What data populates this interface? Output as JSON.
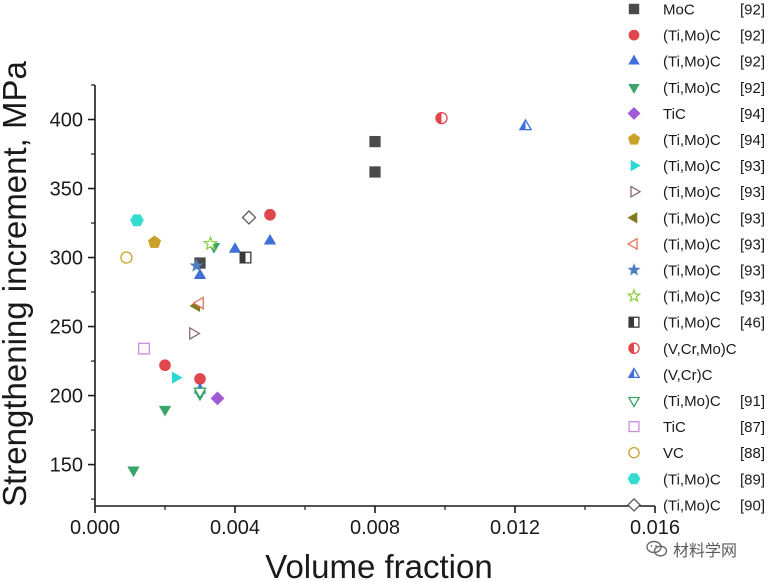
{
  "chart_data": {
    "type": "scatter",
    "title": "",
    "xlabel": "Volume fraction",
    "ylabel": "Strengthening increment, MPa",
    "xlim": [
      0.0,
      0.016
    ],
    "ylim": [
      120,
      425
    ],
    "xticks": [
      "0.000",
      "0.004",
      "0.008",
      "0.012",
      "0.016"
    ],
    "yticks": [
      "150",
      "200",
      "250",
      "300",
      "350",
      "400"
    ],
    "xtick_values": [
      0.0,
      0.004,
      0.008,
      0.012,
      0.016
    ],
    "ytick_values": [
      150,
      200,
      250,
      300,
      350,
      400
    ],
    "grid": false,
    "legend_position": "right",
    "series": [
      {
        "name": "MoC",
        "ref": "[92]",
        "marker": "square",
        "fill": "filled",
        "color": "#4a4a4a",
        "points": [
          [
            0.003,
            296
          ],
          [
            0.008,
            384
          ],
          [
            0.008,
            362
          ]
        ]
      },
      {
        "name": "(Ti,Mo)C",
        "ref": "[92]",
        "marker": "circle",
        "fill": "filled",
        "color": "#e0474c",
        "points": [
          [
            0.002,
            222
          ],
          [
            0.003,
            212
          ],
          [
            0.005,
            331
          ]
        ]
      },
      {
        "name": "(Ti,Mo)C",
        "ref": "[92]",
        "marker": "triangle-up",
        "fill": "filled",
        "color": "#3f6fd8",
        "points": [
          [
            0.003,
            287
          ],
          [
            0.004,
            306
          ],
          [
            0.005,
            312
          ],
          [
            0.003,
            204
          ]
        ]
      },
      {
        "name": "(Ti,Mo)C",
        "ref": "[92]",
        "marker": "triangle-down",
        "fill": "filled",
        "color": "#3aa56a",
        "points": [
          [
            0.0011,
            146
          ],
          [
            0.002,
            190
          ],
          [
            0.003,
            201
          ],
          [
            0.0034,
            308
          ]
        ]
      },
      {
        "name": "TiC",
        "ref": "[94]",
        "marker": "diamond",
        "fill": "filled",
        "color": "#a05ad6",
        "points": [
          [
            0.0035,
            198
          ]
        ]
      },
      {
        "name": "(Ti,Mo)C",
        "ref": "[94]",
        "marker": "pentagon",
        "fill": "filled",
        "color": "#c9a227",
        "points": [
          [
            0.0017,
            311
          ]
        ]
      },
      {
        "name": "(Ti,Mo)C",
        "ref": "[93]",
        "marker": "triangle-right",
        "fill": "filled",
        "color": "#2ad9d2",
        "points": [
          [
            0.0023,
            213
          ]
        ]
      },
      {
        "name": "(Ti,Mo)C",
        "ref": "[93]",
        "marker": "triangle-right",
        "fill": "open",
        "color": "#8a6d6d",
        "points": [
          [
            0.0028,
            245
          ]
        ]
      },
      {
        "name": "(Ti,Mo)C",
        "ref": "[93]",
        "marker": "triangle-left",
        "fill": "filled",
        "color": "#7f7d1f",
        "points": [
          [
            0.0029,
            265
          ]
        ]
      },
      {
        "name": "(Ti,Mo)C",
        "ref": "[93]",
        "marker": "triangle-left",
        "fill": "open",
        "color": "#e0745a",
        "points": [
          [
            0.003,
            267
          ]
        ]
      },
      {
        "name": "(Ti,Mo)C",
        "ref": "[93]",
        "marker": "star",
        "fill": "filled",
        "color": "#4f7dbf",
        "points": [
          [
            0.0029,
            294
          ]
        ]
      },
      {
        "name": "(Ti,Mo)C",
        "ref": "[93]",
        "marker": "star",
        "fill": "open",
        "color": "#8fcf4a",
        "points": [
          [
            0.0033,
            310
          ]
        ]
      },
      {
        "name": "(Ti,Mo)C",
        "ref": "[46]",
        "marker": "square",
        "fill": "half",
        "color": "#3a3a3a",
        "points": [
          [
            0.0043,
            300
          ]
        ]
      },
      {
        "name": "(V,Cr,Mo)C",
        "ref": "",
        "marker": "circle",
        "fill": "half",
        "color": "#e0474c",
        "points": [
          [
            0.0099,
            401
          ]
        ]
      },
      {
        "name": "(V,Cr)C",
        "ref": "",
        "marker": "triangle-up",
        "fill": "half",
        "color": "#3f6fd8",
        "points": [
          [
            0.0123,
            395
          ]
        ]
      },
      {
        "name": "(Ti,Mo)C",
        "ref": "[91]",
        "marker": "triangle-down",
        "fill": "open",
        "color": "#3aa56a",
        "points": [
          [
            0.003,
            203
          ]
        ]
      },
      {
        "name": "TiC",
        "ref": "[87]",
        "marker": "square",
        "fill": "open",
        "color": "#c88fd8",
        "points": [
          [
            0.0014,
            234
          ]
        ]
      },
      {
        "name": "VC",
        "ref": "[88]",
        "marker": "circle",
        "fill": "open",
        "color": "#c9a227",
        "points": [
          [
            0.0009,
            300
          ]
        ]
      },
      {
        "name": "(Ti,Mo)C",
        "ref": "[89]",
        "marker": "hexagon",
        "fill": "filled",
        "color": "#33dccf",
        "points": [
          [
            0.0012,
            327
          ]
        ]
      },
      {
        "name": "(Ti,Mo)C",
        "ref": "[90]",
        "marker": "diamond",
        "fill": "open",
        "color": "#5a5a5a",
        "points": [
          [
            0.0044,
            329
          ]
        ]
      }
    ]
  },
  "watermark": {
    "text": "材料学网"
  }
}
